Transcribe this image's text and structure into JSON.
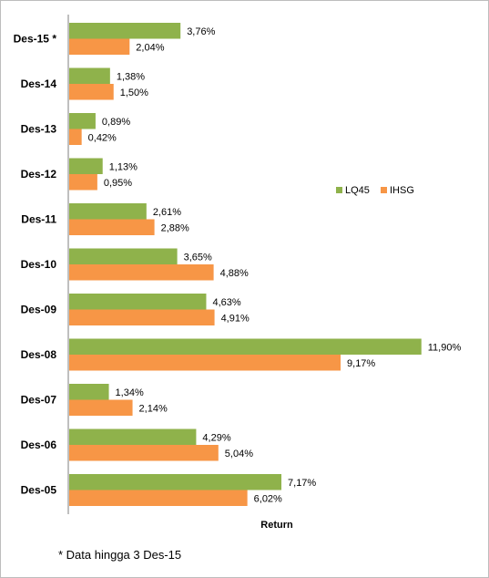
{
  "chart_data": {
    "type": "bar",
    "orientation": "horizontal",
    "categories": [
      "Des-15 *",
      "Des-14",
      "Des-13",
      "Des-12",
      "Des-11",
      "Des-10",
      "Des-09",
      "Des-08",
      "Des-07",
      "Des-06",
      "Des-05"
    ],
    "series": [
      {
        "name": "LQ45",
        "color": "#8FB24B",
        "values": [
          3.76,
          1.38,
          0.89,
          1.13,
          2.61,
          3.65,
          4.63,
          11.9,
          1.34,
          4.29,
          7.17
        ],
        "labels": [
          "3,76%",
          "1,38%",
          "0,89%",
          "1,13%",
          "2,61%",
          "3,65%",
          "4,63%",
          "11,90%",
          "1,34%",
          "4,29%",
          "7,17%"
        ]
      },
      {
        "name": "IHSG",
        "color": "#F79646",
        "values": [
          2.04,
          1.5,
          0.42,
          0.95,
          2.88,
          4.88,
          4.91,
          9.17,
          2.14,
          5.04,
          6.02
        ],
        "labels": [
          "2,04%",
          "1,50%",
          "0,42%",
          "0,95%",
          "2,88%",
          "4,88%",
          "4,91%",
          "9,17%",
          "2,14%",
          "5,04%",
          "6,02%"
        ]
      }
    ],
    "xlabel": "Return",
    "xlim": [
      0,
      12.3
    ],
    "grid": false,
    "legend": "right-middle"
  },
  "footnote": "* Data hingga 3 Des-15"
}
